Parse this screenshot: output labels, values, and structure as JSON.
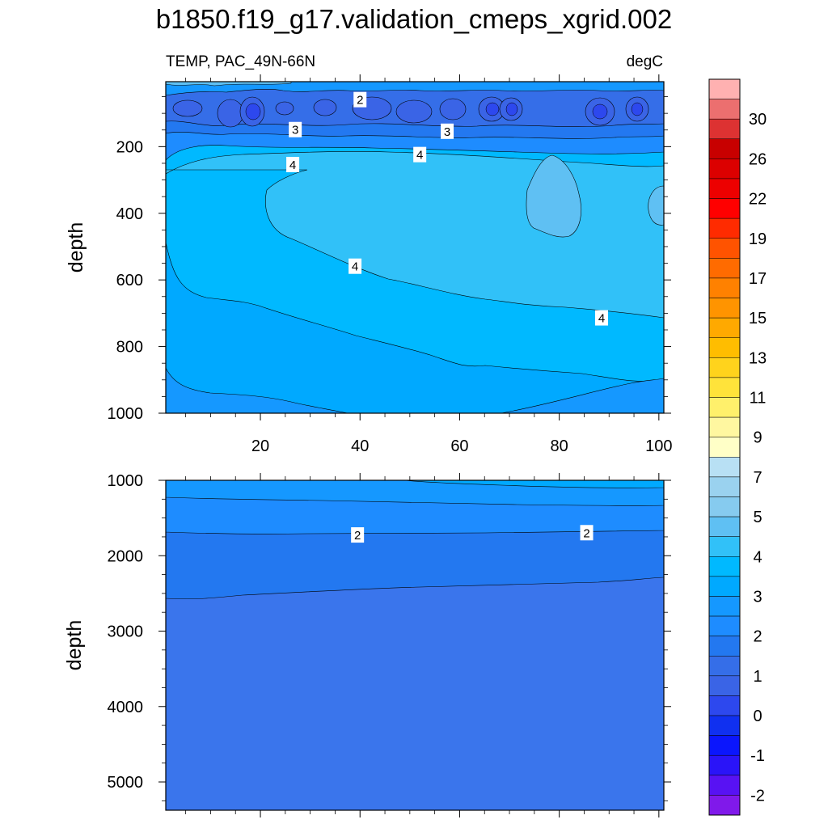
{
  "title": "b1850.f19_g17.validation_cmeps_xgrid.002",
  "variable_label": "TEMP, PAC_49N-66N",
  "units_label": "degC",
  "chart_data": [
    {
      "type": "contour",
      "panel": "upper",
      "xlim": [
        1,
        101
      ],
      "ylim": [
        1000,
        5
      ],
      "x_ticks": [
        20,
        40,
        60,
        80,
        100
      ],
      "x_tick_labels": [
        "20",
        "40",
        "60",
        "80",
        "100"
      ],
      "y_ticks": [
        200,
        400,
        600,
        800,
        1000
      ],
      "y_tick_labels": [
        "200",
        "400",
        "600",
        "800",
        "1000"
      ],
      "xlabel": "",
      "ylabel": "depth",
      "contour_labels": [
        {
          "text": "2",
          "x": 40,
          "y": 60
        },
        {
          "text": "3",
          "x": 27,
          "y": 150
        },
        {
          "text": "3",
          "x": 57.5,
          "y": 155
        },
        {
          "text": "4",
          "x": 26.5,
          "y": 255
        },
        {
          "text": "4",
          "x": 52,
          "y": 225
        },
        {
          "text": "4",
          "x": 39,
          "y": 560
        },
        {
          "text": "4",
          "x": 88.5,
          "y": 715
        }
      ]
    },
    {
      "type": "contour",
      "panel": "lower",
      "xlim": [
        1,
        101
      ],
      "ylim": [
        5375,
        1000
      ],
      "x_ticks": [
        20,
        40,
        60,
        80,
        100
      ],
      "y_ticks": [
        1000,
        2000,
        3000,
        4000,
        5000
      ],
      "y_tick_labels": [
        "1000",
        "2000",
        "3000",
        "4000",
        "5000"
      ],
      "xlabel": "",
      "ylabel": "depth",
      "contour_labels": [
        {
          "text": "2",
          "x": 39.5,
          "y": 1730
        },
        {
          "text": "2",
          "x": 85.5,
          "y": 1700
        }
      ]
    }
  ],
  "colorbar": {
    "colors": [
      "#ffb1b1",
      "#ec6f6f",
      "#dd3232",
      "#c80000",
      "#dc0000",
      "#ed0000",
      "#ff0000",
      "#ff2b00",
      "#ff5300",
      "#ff6b00",
      "#ff8100",
      "#ff9400",
      "#ffa900",
      "#ffbd00",
      "#ffd31c",
      "#ffe33a",
      "#fff06b",
      "#fff7a0",
      "#ffffc7",
      "#b8e0f4",
      "#9ad2ef",
      "#86cbef",
      "#5fc0f3",
      "#31c1f8",
      "#00b9ff",
      "#00a9ff",
      "#1598ff",
      "#1e8cff",
      "#2378f0",
      "#356ee8",
      "#3a64e6",
      "#2d48ee",
      "#1030f0",
      "#0b16fd",
      "#2a14f8",
      "#5812f3",
      "#8019ea"
    ],
    "labels": [
      "30",
      "26",
      "22",
      "19",
      "17",
      "15",
      "13",
      "11",
      "9",
      "7",
      "5",
      "4",
      "3",
      "2",
      "1",
      "0",
      "-1",
      "-2"
    ]
  }
}
